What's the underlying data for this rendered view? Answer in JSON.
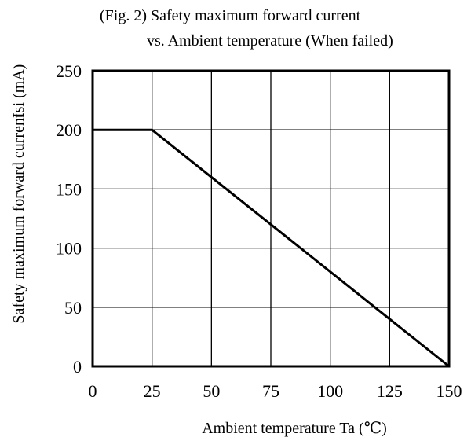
{
  "chart_data": {
    "type": "line",
    "title": "(Fig. 2) Safety maximum forward current",
    "subtitle": "vs. Ambient temperature (When failed)",
    "xlabel": "Ambient temperature Ta (℃)",
    "ylabel": "Safety maximum forward current",
    "ylabel_unit": "Isi (mA)",
    "xlim": [
      0,
      150
    ],
    "ylim": [
      0,
      250
    ],
    "x_ticks": [
      0,
      25,
      50,
      75,
      100,
      125,
      150
    ],
    "y_ticks": [
      0,
      50,
      100,
      150,
      200,
      250
    ],
    "grid": true,
    "series": [
      {
        "x": [
          0,
          25,
          150
        ],
        "y": [
          200,
          200,
          0
        ]
      }
    ]
  }
}
